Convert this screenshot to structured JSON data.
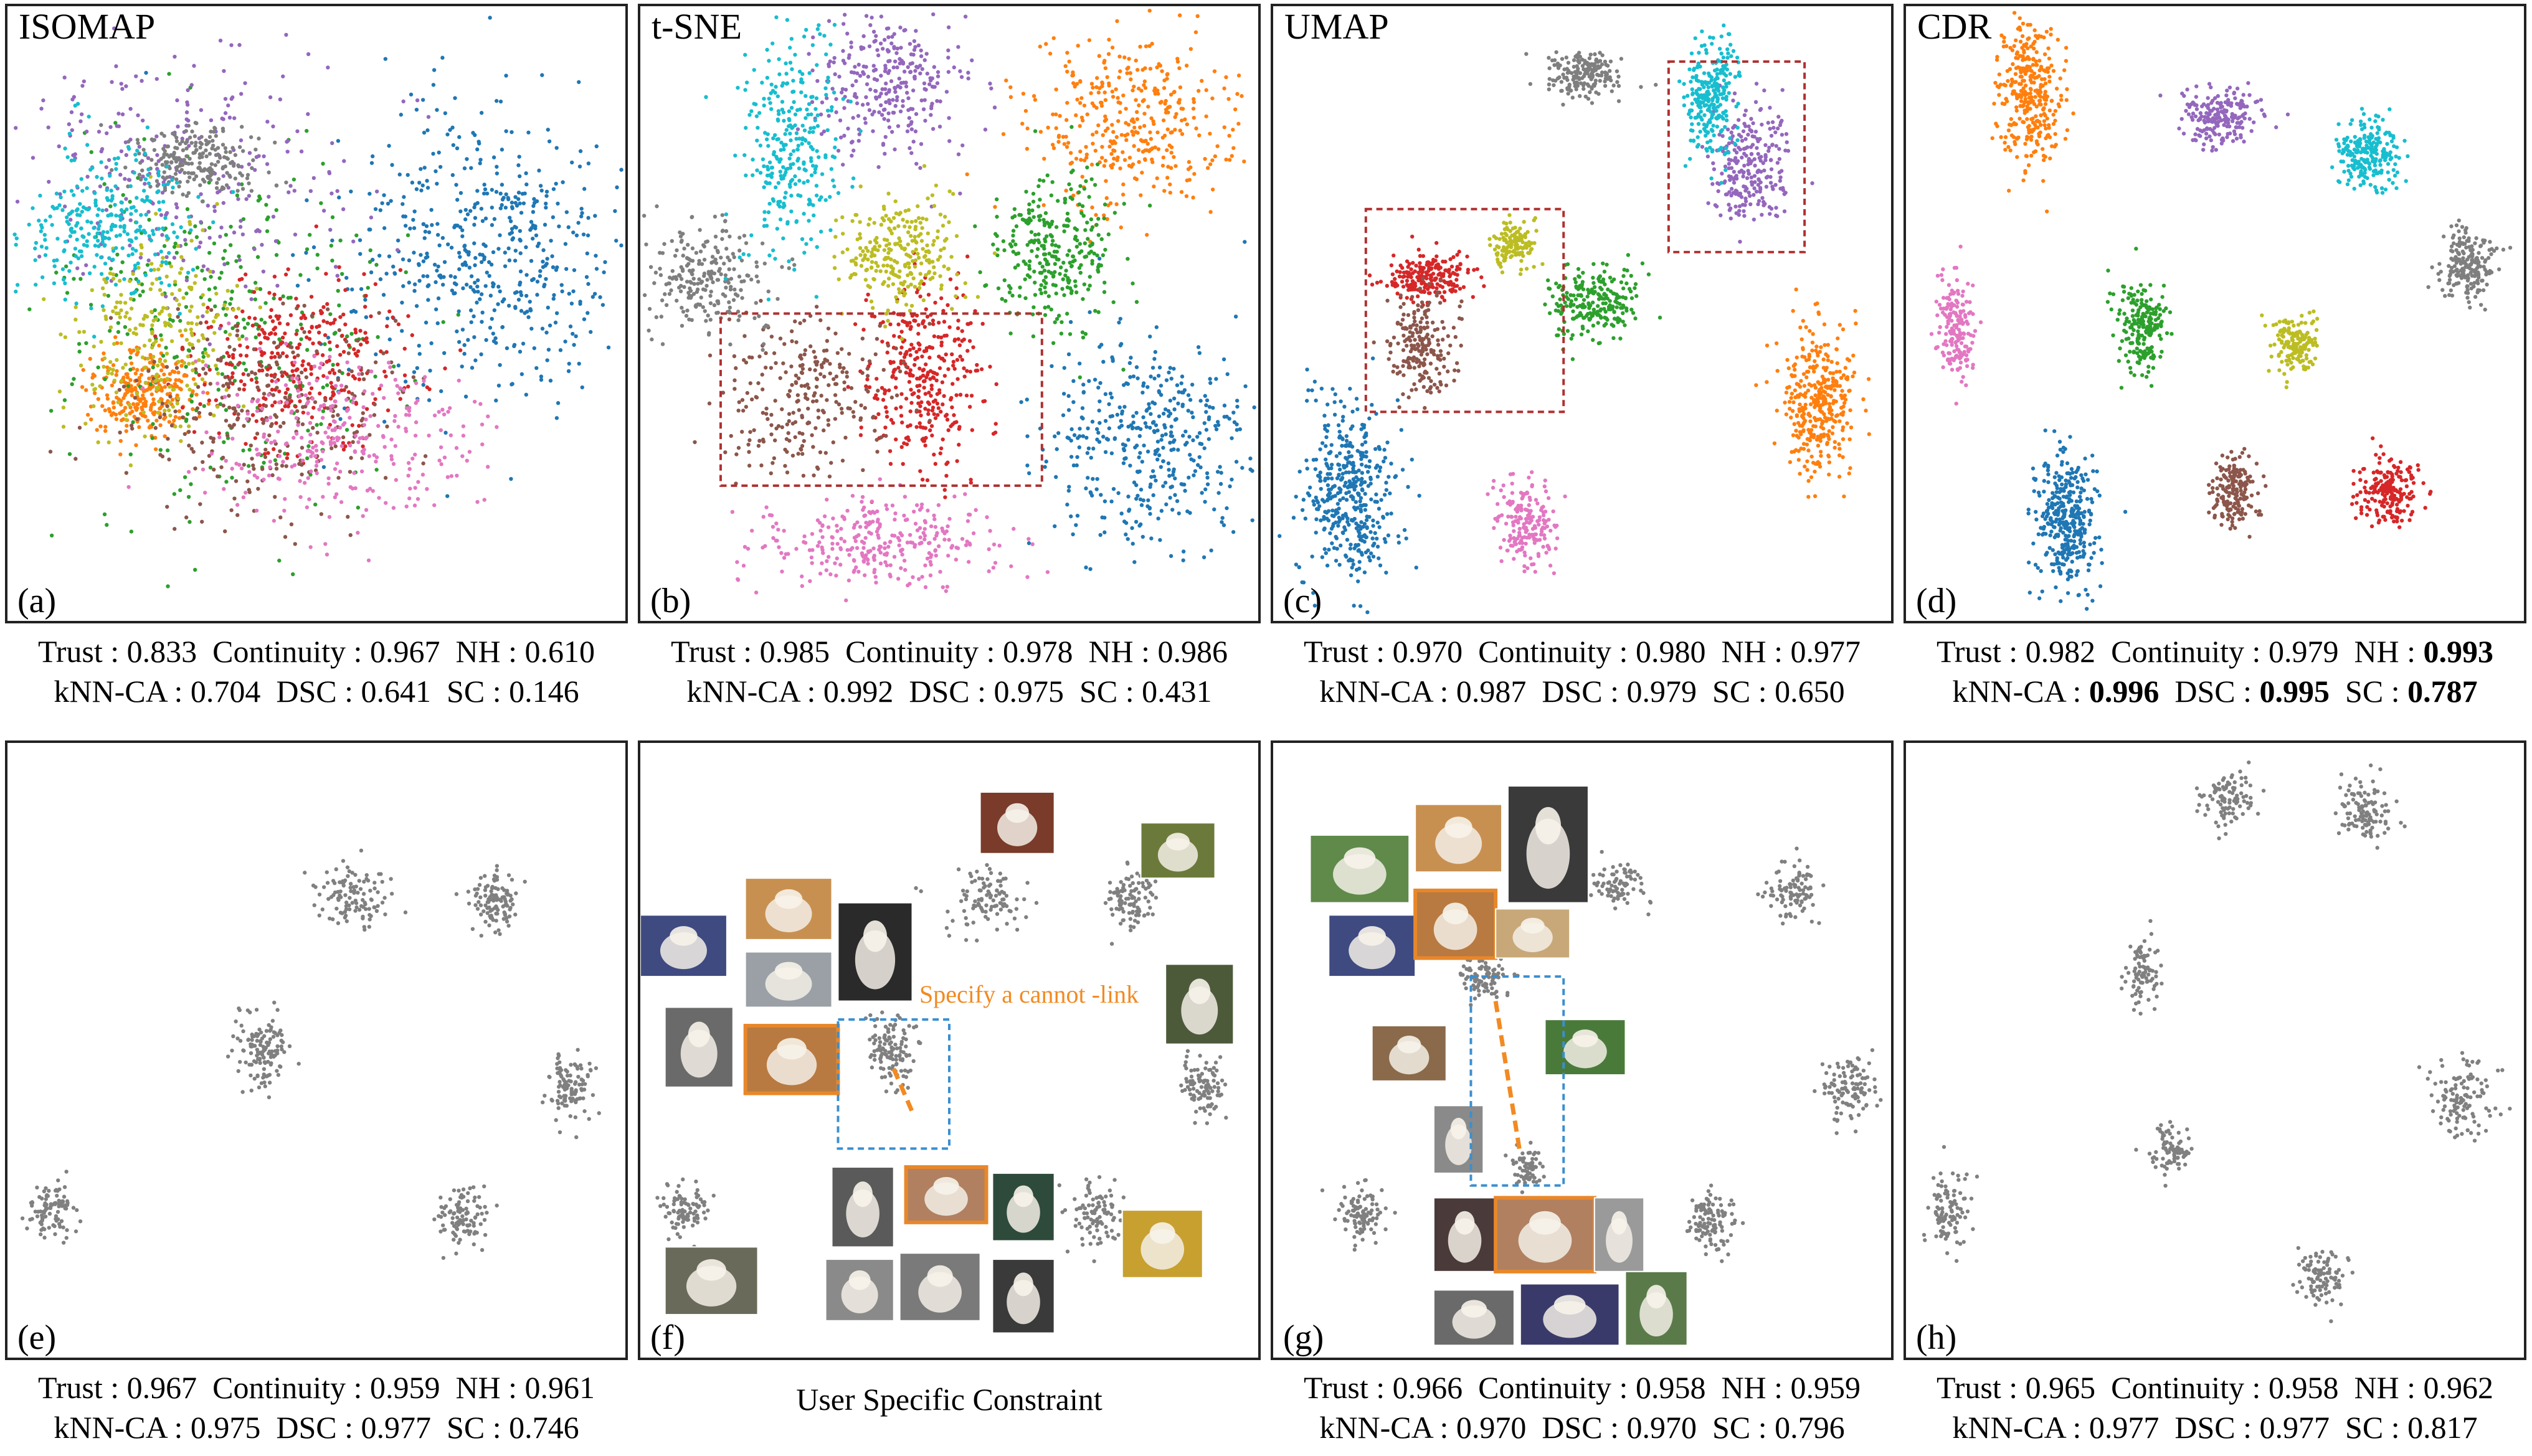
{
  "colors": {
    "class_palette": [
      "#1f77b4",
      "#ff7f0e",
      "#2ca02c",
      "#d62728",
      "#9467bd",
      "#8c564b",
      "#e377c2",
      "#7f7f7f",
      "#bcbd22",
      "#17becf"
    ],
    "gray_point": "#808080",
    "highlight_box_red": "#b03030",
    "highlight_box_blue": "#3a8fd0",
    "constraint_orange": "#f28a22",
    "image_border_orange": "#e8872a"
  },
  "labels": {
    "constraint_annotation": "Specify a cannot -link",
    "user_constraint_caption": "User Specific Constraint"
  },
  "chart_data": [
    {
      "id": "a",
      "type": "scatter",
      "title": "ISOMAP",
      "panel_label": "(a)",
      "metrics": {
        "Trust": "0.833",
        "Continuity": "0.967",
        "NH": "0.610",
        "kNN-CA": "0.704",
        "DSC": "0.641",
        "SC": "0.146"
      },
      "bold": [],
      "clusters": [
        {
          "cls": 0,
          "x": 0.78,
          "y": 0.4,
          "sx": 0.13,
          "sy": 0.12,
          "n": 560
        },
        {
          "cls": 1,
          "x": 0.22,
          "y": 0.63,
          "sx": 0.04,
          "sy": 0.035,
          "n": 280
        },
        {
          "cls": 2,
          "x": 0.35,
          "y": 0.52,
          "sx": 0.14,
          "sy": 0.14,
          "n": 330
        },
        {
          "cls": 3,
          "x": 0.47,
          "y": 0.58,
          "sx": 0.09,
          "sy": 0.07,
          "n": 320
        },
        {
          "cls": 4,
          "x": 0.3,
          "y": 0.28,
          "sx": 0.13,
          "sy": 0.1,
          "n": 280
        },
        {
          "cls": 5,
          "x": 0.42,
          "y": 0.66,
          "sx": 0.11,
          "sy": 0.08,
          "n": 280
        },
        {
          "cls": 6,
          "x": 0.52,
          "y": 0.7,
          "sx": 0.11,
          "sy": 0.07,
          "n": 300
        },
        {
          "cls": 7,
          "x": 0.3,
          "y": 0.25,
          "sx": 0.05,
          "sy": 0.03,
          "n": 220
        },
        {
          "cls": 8,
          "x": 0.24,
          "y": 0.52,
          "sx": 0.07,
          "sy": 0.08,
          "n": 240
        },
        {
          "cls": 9,
          "x": 0.16,
          "y": 0.36,
          "sx": 0.06,
          "sy": 0.06,
          "n": 290
        }
      ]
    },
    {
      "id": "b",
      "type": "scatter",
      "title": "t-SNE",
      "panel_label": "(b)",
      "metrics": {
        "Trust": "0.985",
        "Continuity": "0.978",
        "NH": "0.986",
        "kNN-CA": "0.992",
        "DSC": "0.975",
        "SC": "0.431"
      },
      "bold": [],
      "clusters": [
        {
          "cls": 0,
          "x": 0.82,
          "y": 0.71,
          "sx": 0.09,
          "sy": 0.085,
          "n": 420
        },
        {
          "cls": 1,
          "x": 0.8,
          "y": 0.19,
          "sx": 0.085,
          "sy": 0.07,
          "n": 380
        },
        {
          "cls": 2,
          "x": 0.67,
          "y": 0.4,
          "sx": 0.05,
          "sy": 0.065,
          "n": 300
        },
        {
          "cls": 3,
          "x": 0.46,
          "y": 0.6,
          "sx": 0.045,
          "sy": 0.075,
          "n": 340
        },
        {
          "cls": 4,
          "x": 0.4,
          "y": 0.13,
          "sx": 0.06,
          "sy": 0.06,
          "n": 300
        },
        {
          "cls": 5,
          "x": 0.27,
          "y": 0.63,
          "sx": 0.065,
          "sy": 0.06,
          "n": 260
        },
        {
          "cls": 6,
          "x": 0.39,
          "y": 0.87,
          "sx": 0.1,
          "sy": 0.035,
          "n": 300
        },
        {
          "cls": 7,
          "x": 0.11,
          "y": 0.45,
          "sx": 0.05,
          "sy": 0.045,
          "n": 240
        },
        {
          "cls": 8,
          "x": 0.42,
          "y": 0.4,
          "sx": 0.05,
          "sy": 0.045,
          "n": 260
        },
        {
          "cls": 9,
          "x": 0.24,
          "y": 0.23,
          "sx": 0.04,
          "sy": 0.09,
          "n": 300
        }
      ],
      "boxes": [
        {
          "x0": 0.13,
          "y0": 0.5,
          "x1": 0.65,
          "y1": 0.78,
          "color": "red"
        }
      ]
    },
    {
      "id": "c",
      "type": "scatter",
      "title": "UMAP",
      "panel_label": "(c)",
      "metrics": {
        "Trust": "0.970",
        "Continuity": "0.980",
        "NH": "0.977",
        "kNN-CA": "0.987",
        "DSC": "0.979",
        "SC": "0.650"
      },
      "bold": [],
      "clusters": [
        {
          "cls": 0,
          "x": 0.12,
          "y": 0.8,
          "sx": 0.035,
          "sy": 0.075,
          "n": 420
        },
        {
          "cls": 1,
          "x": 0.88,
          "y": 0.64,
          "sx": 0.03,
          "sy": 0.06,
          "n": 360
        },
        {
          "cls": 2,
          "x": 0.52,
          "y": 0.48,
          "sx": 0.035,
          "sy": 0.03,
          "n": 230
        },
        {
          "cls": 3,
          "x": 0.25,
          "y": 0.44,
          "sx": 0.035,
          "sy": 0.02,
          "n": 220
        },
        {
          "cls": 4,
          "x": 0.77,
          "y": 0.25,
          "sx": 0.03,
          "sy": 0.05,
          "n": 250
        },
        {
          "cls": 5,
          "x": 0.24,
          "y": 0.55,
          "sx": 0.025,
          "sy": 0.04,
          "n": 200
        },
        {
          "cls": 6,
          "x": 0.41,
          "y": 0.84,
          "sx": 0.025,
          "sy": 0.035,
          "n": 180
        },
        {
          "cls": 7,
          "x": 0.5,
          "y": 0.11,
          "sx": 0.03,
          "sy": 0.02,
          "n": 180
        },
        {
          "cls": 8,
          "x": 0.39,
          "y": 0.39,
          "sx": 0.018,
          "sy": 0.02,
          "n": 130
        },
        {
          "cls": 9,
          "x": 0.71,
          "y": 0.15,
          "sx": 0.02,
          "sy": 0.05,
          "n": 260
        }
      ],
      "boxes": [
        {
          "x0": 0.15,
          "y0": 0.33,
          "x1": 0.47,
          "y1": 0.66,
          "color": "red"
        },
        {
          "x0": 0.64,
          "y0": 0.09,
          "x1": 0.86,
          "y1": 0.4,
          "color": "red"
        }
      ]
    },
    {
      "id": "d",
      "type": "scatter",
      "title": "CDR",
      "panel_label": "(d)",
      "metrics": {
        "Trust": "0.982",
        "Continuity": "0.979",
        "NH": "0.993",
        "kNN-CA": "0.996",
        "DSC": "0.995",
        "SC": "0.787"
      },
      "bold": [
        "NH",
        "kNN-CA",
        "DSC",
        "SC"
      ],
      "clusters": [
        {
          "cls": 0,
          "x": 0.26,
          "y": 0.84,
          "sx": 0.025,
          "sy": 0.06,
          "n": 360
        },
        {
          "cls": 1,
          "x": 0.2,
          "y": 0.14,
          "sx": 0.025,
          "sy": 0.06,
          "n": 340
        },
        {
          "cls": 2,
          "x": 0.38,
          "y": 0.52,
          "sx": 0.02,
          "sy": 0.04,
          "n": 220
        },
        {
          "cls": 3,
          "x": 0.78,
          "y": 0.79,
          "sx": 0.025,
          "sy": 0.025,
          "n": 200
        },
        {
          "cls": 4,
          "x": 0.51,
          "y": 0.18,
          "sx": 0.03,
          "sy": 0.02,
          "n": 200
        },
        {
          "cls": 5,
          "x": 0.53,
          "y": 0.79,
          "sx": 0.018,
          "sy": 0.03,
          "n": 180
        },
        {
          "cls": 6,
          "x": 0.08,
          "y": 0.52,
          "sx": 0.015,
          "sy": 0.04,
          "n": 180
        },
        {
          "cls": 7,
          "x": 0.91,
          "y": 0.42,
          "sx": 0.022,
          "sy": 0.028,
          "n": 200
        },
        {
          "cls": 8,
          "x": 0.63,
          "y": 0.55,
          "sx": 0.018,
          "sy": 0.025,
          "n": 160
        },
        {
          "cls": 9,
          "x": 0.75,
          "y": 0.24,
          "sx": 0.025,
          "sy": 0.028,
          "n": 220
        }
      ]
    },
    {
      "id": "e",
      "type": "scatter",
      "title": "",
      "panel_label": "(e)",
      "metrics": {
        "Trust": "0.967",
        "Continuity": "0.959",
        "NH": "0.961",
        "kNN-CA": "0.975",
        "DSC": "0.977",
        "SC": "0.746"
      },
      "bold": [],
      "clusters": [
        {
          "cls": -1,
          "x": 0.56,
          "y": 0.25,
          "sx": 0.03,
          "sy": 0.025,
          "n": 110
        },
        {
          "cls": -1,
          "x": 0.79,
          "y": 0.26,
          "sx": 0.02,
          "sy": 0.025,
          "n": 110
        },
        {
          "cls": -1,
          "x": 0.41,
          "y": 0.5,
          "sx": 0.02,
          "sy": 0.03,
          "n": 130
        },
        {
          "cls": -1,
          "x": 0.91,
          "y": 0.56,
          "sx": 0.02,
          "sy": 0.025,
          "n": 110
        },
        {
          "cls": -1,
          "x": 0.07,
          "y": 0.76,
          "sx": 0.018,
          "sy": 0.022,
          "n": 100
        },
        {
          "cls": -1,
          "x": 0.74,
          "y": 0.77,
          "sx": 0.02,
          "sy": 0.025,
          "n": 100
        }
      ]
    },
    {
      "id": "f",
      "type": "scatter",
      "title": "",
      "panel_label": "(f)",
      "metrics": {},
      "bold": [],
      "clusters": [
        {
          "cls": -1,
          "x": 0.56,
          "y": 0.25,
          "sx": 0.03,
          "sy": 0.025,
          "n": 100
        },
        {
          "cls": -1,
          "x": 0.79,
          "y": 0.26,
          "sx": 0.02,
          "sy": 0.025,
          "n": 100
        },
        {
          "cls": -1,
          "x": 0.41,
          "y": 0.5,
          "sx": 0.02,
          "sy": 0.03,
          "n": 120
        },
        {
          "cls": -1,
          "x": 0.91,
          "y": 0.56,
          "sx": 0.02,
          "sy": 0.025,
          "n": 100
        },
        {
          "cls": -1,
          "x": 0.07,
          "y": 0.76,
          "sx": 0.018,
          "sy": 0.022,
          "n": 90
        },
        {
          "cls": -1,
          "x": 0.74,
          "y": 0.77,
          "sx": 0.02,
          "sy": 0.025,
          "n": 100
        }
      ],
      "boxes": [
        {
          "x0": 0.32,
          "y0": 0.45,
          "x1": 0.5,
          "y1": 0.66,
          "color": "blue"
        }
      ],
      "constraint_line": {
        "x0": 0.41,
        "y0": 0.53,
        "x1": 0.44,
        "y1": 0.6
      },
      "images": [
        {
          "x": 0.55,
          "y": 0.08,
          "w": 0.12,
          "h": 0.1,
          "tone": "#7a3b2a",
          "border": false
        },
        {
          "x": 0.81,
          "y": 0.13,
          "w": 0.12,
          "h": 0.09,
          "tone": "#6b7a3a",
          "border": false
        },
        {
          "x": 0.17,
          "y": 0.22,
          "w": 0.14,
          "h": 0.1,
          "tone": "#c89050",
          "border": false
        },
        {
          "x": 0.0,
          "y": 0.28,
          "w": 0.14,
          "h": 0.1,
          "tone": "#3e4a80",
          "border": false
        },
        {
          "x": 0.17,
          "y": 0.34,
          "w": 0.14,
          "h": 0.09,
          "tone": "#9aa0a6",
          "border": false
        },
        {
          "x": 0.32,
          "y": 0.26,
          "w": 0.12,
          "h": 0.16,
          "tone": "#2a2a2a",
          "border": false
        },
        {
          "x": 0.04,
          "y": 0.43,
          "w": 0.11,
          "h": 0.13,
          "tone": "#6a6a6a",
          "border": false
        },
        {
          "x": 0.17,
          "y": 0.46,
          "w": 0.15,
          "h": 0.11,
          "tone": "#b87a40",
          "border": true
        },
        {
          "x": 0.85,
          "y": 0.36,
          "w": 0.11,
          "h": 0.13,
          "tone": "#4c5a3a",
          "border": false
        },
        {
          "x": 0.31,
          "y": 0.69,
          "w": 0.1,
          "h": 0.13,
          "tone": "#5a5a5a",
          "border": false
        },
        {
          "x": 0.43,
          "y": 0.69,
          "w": 0.13,
          "h": 0.09,
          "tone": "#b08060",
          "border": true
        },
        {
          "x": 0.57,
          "y": 0.7,
          "w": 0.1,
          "h": 0.11,
          "tone": "#2e4a3a",
          "border": false
        },
        {
          "x": 0.78,
          "y": 0.76,
          "w": 0.13,
          "h": 0.11,
          "tone": "#c8a030",
          "border": false
        },
        {
          "x": 0.04,
          "y": 0.82,
          "w": 0.15,
          "h": 0.11,
          "tone": "#6a6a5a",
          "border": false
        },
        {
          "x": 0.3,
          "y": 0.84,
          "w": 0.11,
          "h": 0.1,
          "tone": "#8a8a8a",
          "border": false
        },
        {
          "x": 0.42,
          "y": 0.83,
          "w": 0.13,
          "h": 0.11,
          "tone": "#7a7a7a",
          "border": false
        },
        {
          "x": 0.57,
          "y": 0.84,
          "w": 0.1,
          "h": 0.12,
          "tone": "#3a3a3a",
          "border": false
        }
      ]
    },
    {
      "id": "g",
      "type": "scatter",
      "title": "",
      "panel_label": "(g)",
      "metrics": {
        "Trust": "0.966",
        "Continuity": "0.958",
        "NH": "0.959",
        "kNN-CA": "0.970",
        "DSC": "0.970",
        "SC": "0.796"
      },
      "bold": [],
      "clusters": [
        {
          "cls": -1,
          "x": 0.56,
          "y": 0.23,
          "sx": 0.02,
          "sy": 0.02,
          "n": 80
        },
        {
          "cls": -1,
          "x": 0.84,
          "y": 0.24,
          "sx": 0.02,
          "sy": 0.022,
          "n": 100
        },
        {
          "cls": -1,
          "x": 0.34,
          "y": 0.38,
          "sx": 0.02,
          "sy": 0.018,
          "n": 90
        },
        {
          "cls": -1,
          "x": 0.93,
          "y": 0.56,
          "sx": 0.02,
          "sy": 0.025,
          "n": 110
        },
        {
          "cls": -1,
          "x": 0.14,
          "y": 0.77,
          "sx": 0.02,
          "sy": 0.022,
          "n": 100
        },
        {
          "cls": -1,
          "x": 0.71,
          "y": 0.78,
          "sx": 0.02,
          "sy": 0.025,
          "n": 110
        },
        {
          "cls": -1,
          "x": 0.41,
          "y": 0.69,
          "sx": 0.012,
          "sy": 0.018,
          "n": 70
        }
      ],
      "boxes": [
        {
          "x0": 0.32,
          "y0": 0.38,
          "x1": 0.47,
          "y1": 0.72,
          "color": "blue"
        }
      ],
      "constraint_line": {
        "x0": 0.36,
        "y0": 0.42,
        "x1": 0.4,
        "y1": 0.67
      },
      "images": [
        {
          "x": 0.06,
          "y": 0.15,
          "w": 0.16,
          "h": 0.11,
          "tone": "#5f8a4a",
          "border": false
        },
        {
          "x": 0.23,
          "y": 0.1,
          "w": 0.14,
          "h": 0.11,
          "tone": "#c89050",
          "border": false
        },
        {
          "x": 0.38,
          "y": 0.07,
          "w": 0.13,
          "h": 0.19,
          "tone": "#3a3a3a",
          "border": false
        },
        {
          "x": 0.09,
          "y": 0.28,
          "w": 0.14,
          "h": 0.1,
          "tone": "#3e4a80",
          "border": false
        },
        {
          "x": 0.23,
          "y": 0.24,
          "w": 0.13,
          "h": 0.11,
          "tone": "#b87a40",
          "border": true
        },
        {
          "x": 0.36,
          "y": 0.27,
          "w": 0.12,
          "h": 0.08,
          "tone": "#c8a878",
          "border": false
        },
        {
          "x": 0.16,
          "y": 0.46,
          "w": 0.12,
          "h": 0.09,
          "tone": "#8a6a4a",
          "border": false
        },
        {
          "x": 0.44,
          "y": 0.45,
          "w": 0.13,
          "h": 0.09,
          "tone": "#4a7a3a",
          "border": false
        },
        {
          "x": 0.26,
          "y": 0.59,
          "w": 0.08,
          "h": 0.11,
          "tone": "#8a8a8a",
          "border": false
        },
        {
          "x": 0.26,
          "y": 0.74,
          "w": 0.1,
          "h": 0.12,
          "tone": "#4a3a3a",
          "border": false
        },
        {
          "x": 0.36,
          "y": 0.74,
          "w": 0.16,
          "h": 0.12,
          "tone": "#b08060",
          "border": true
        },
        {
          "x": 0.52,
          "y": 0.74,
          "w": 0.08,
          "h": 0.12,
          "tone": "#9a9a9a",
          "border": false
        },
        {
          "x": 0.26,
          "y": 0.89,
          "w": 0.13,
          "h": 0.09,
          "tone": "#6a6a6a",
          "border": false
        },
        {
          "x": 0.4,
          "y": 0.88,
          "w": 0.16,
          "h": 0.1,
          "tone": "#3a3a6a",
          "border": false
        },
        {
          "x": 0.57,
          "y": 0.86,
          "w": 0.1,
          "h": 0.12,
          "tone": "#5a7a4a",
          "border": false
        }
      ]
    },
    {
      "id": "h",
      "type": "scatter",
      "title": "",
      "panel_label": "(h)",
      "metrics": {
        "Trust": "0.965",
        "Continuity": "0.958",
        "NH": "0.962",
        "kNN-CA": "0.977",
        "DSC": "0.977",
        "SC": "0.817"
      },
      "bold": [],
      "clusters": [
        {
          "cls": -1,
          "x": 0.52,
          "y": 0.09,
          "sx": 0.02,
          "sy": 0.025,
          "n": 100
        },
        {
          "cls": -1,
          "x": 0.74,
          "y": 0.11,
          "sx": 0.025,
          "sy": 0.025,
          "n": 110
        },
        {
          "cls": -1,
          "x": 0.38,
          "y": 0.37,
          "sx": 0.015,
          "sy": 0.025,
          "n": 90
        },
        {
          "cls": -1,
          "x": 0.9,
          "y": 0.58,
          "sx": 0.025,
          "sy": 0.03,
          "n": 120
        },
        {
          "cls": -1,
          "x": 0.43,
          "y": 0.66,
          "sx": 0.015,
          "sy": 0.022,
          "n": 80
        },
        {
          "cls": -1,
          "x": 0.07,
          "y": 0.76,
          "sx": 0.018,
          "sy": 0.03,
          "n": 100
        },
        {
          "cls": -1,
          "x": 0.67,
          "y": 0.87,
          "sx": 0.022,
          "sy": 0.022,
          "n": 100
        }
      ]
    }
  ]
}
